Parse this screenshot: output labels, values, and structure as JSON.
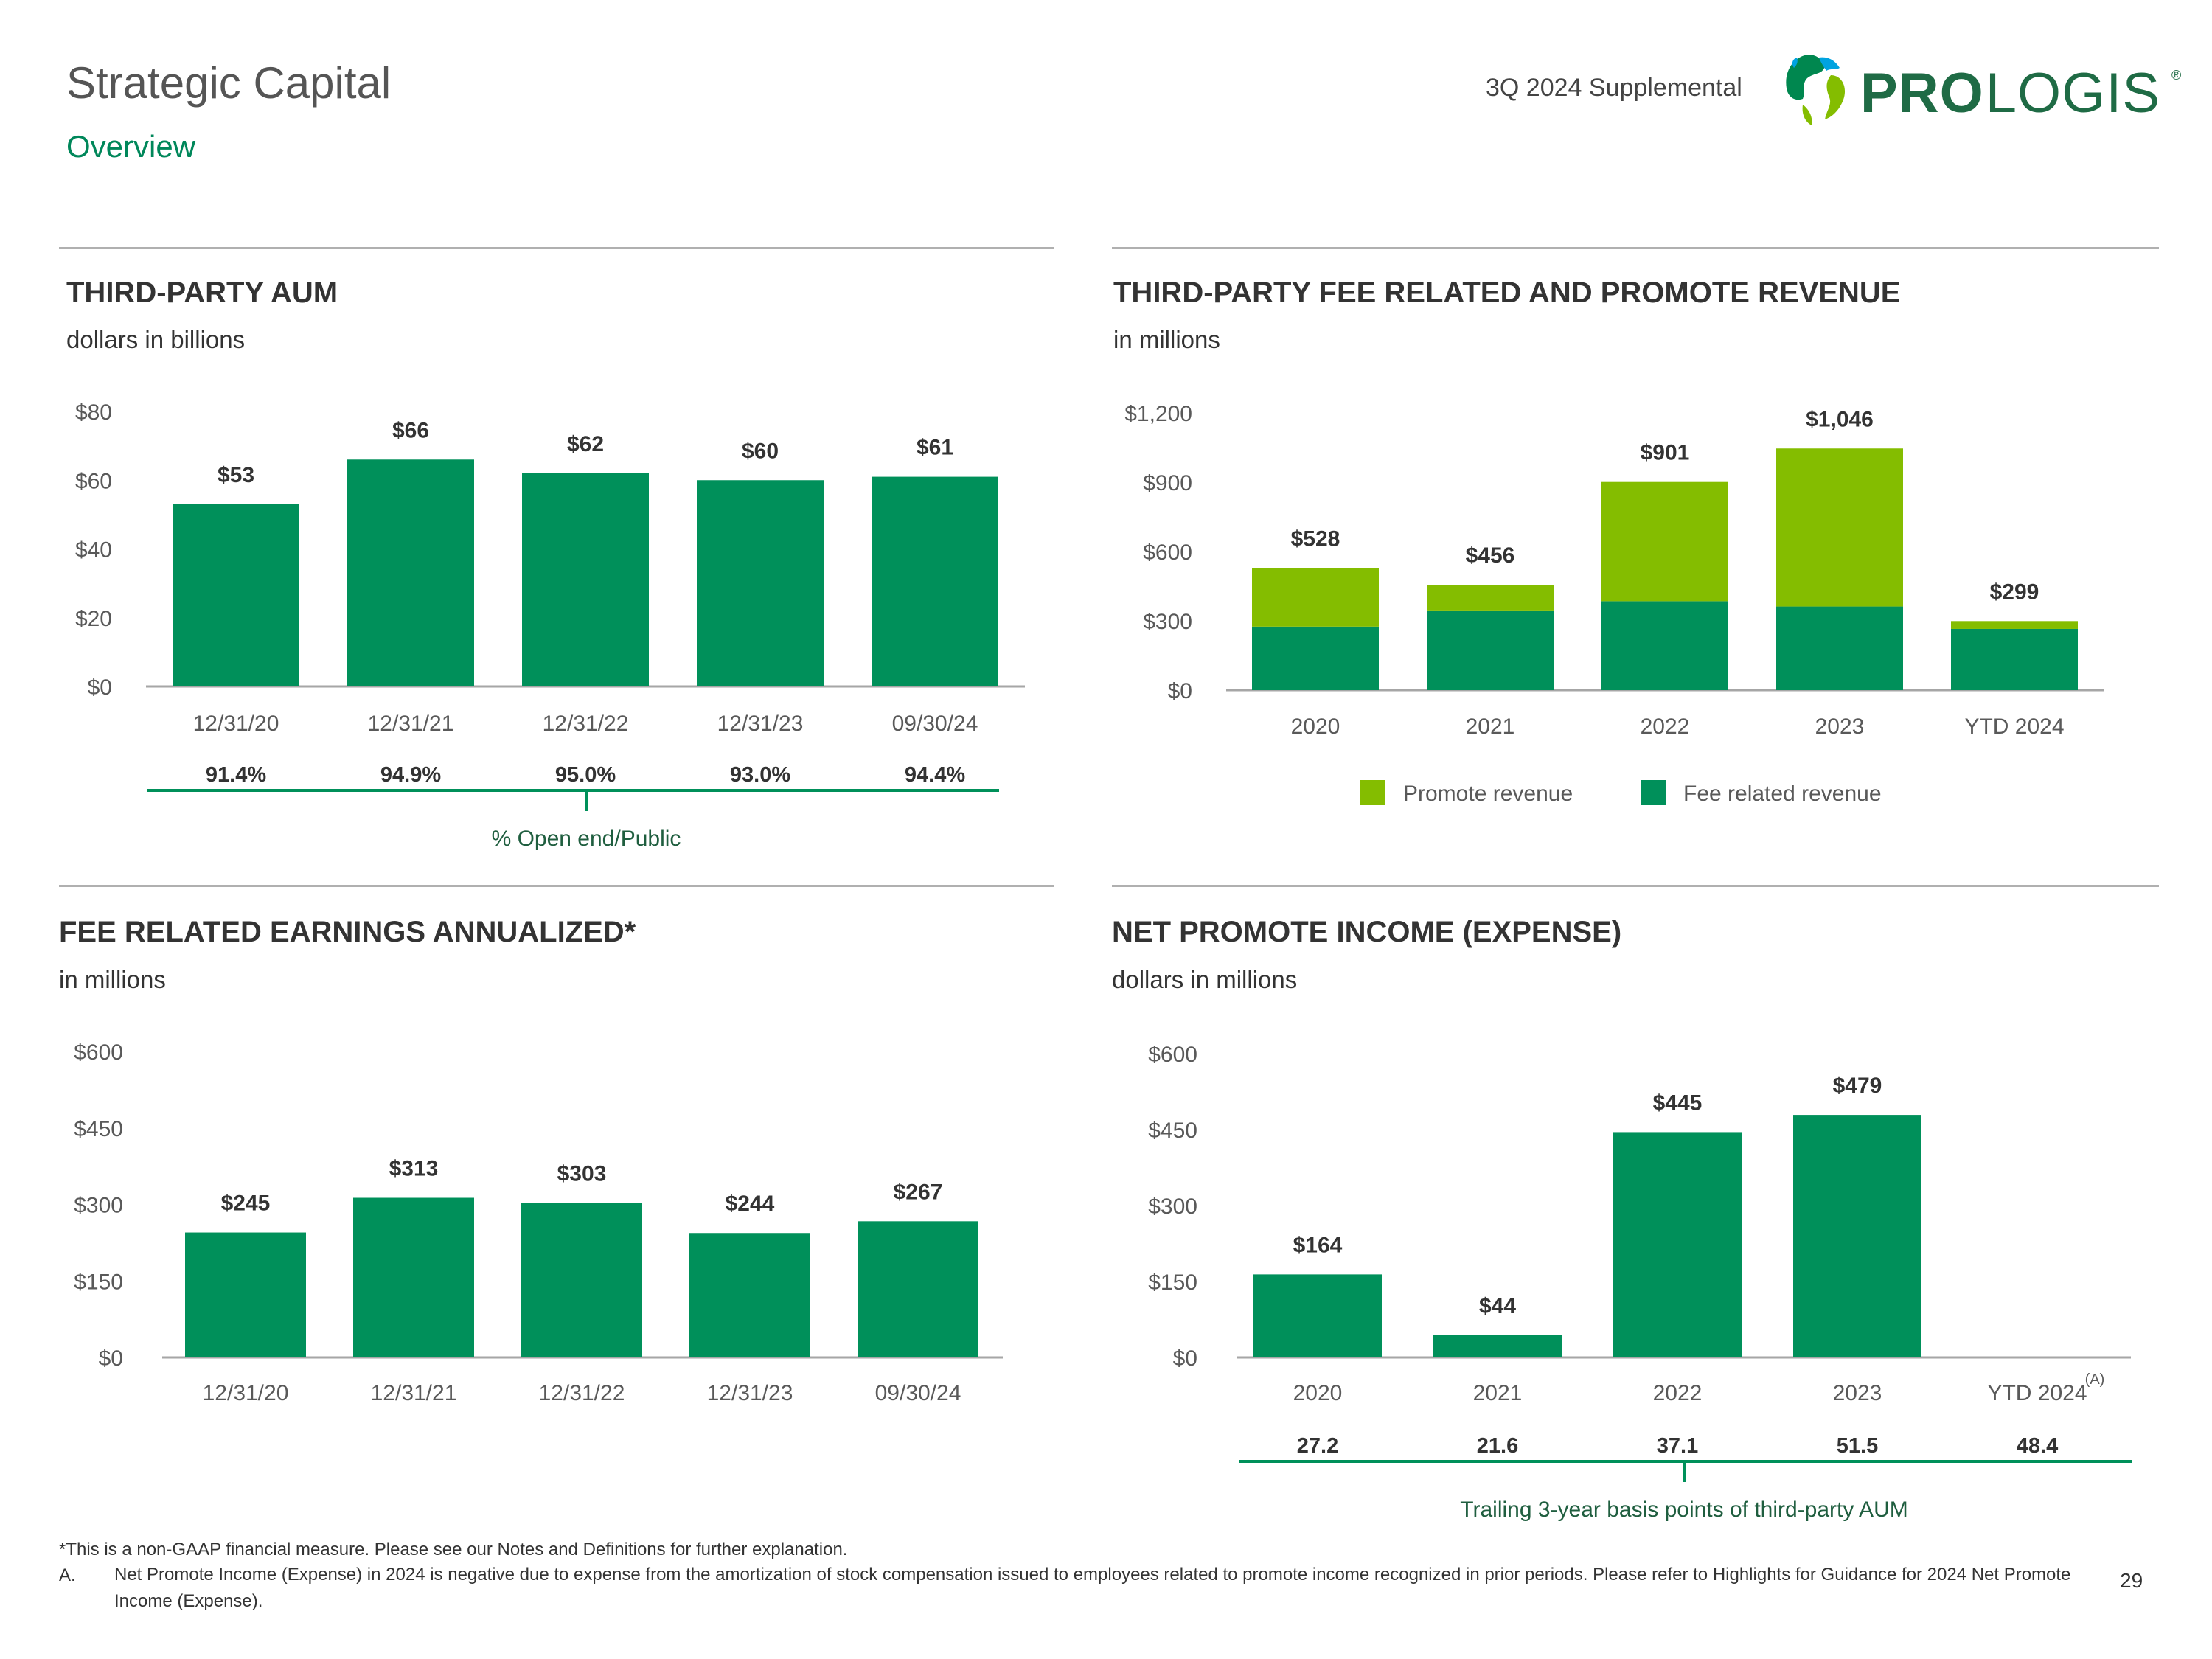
{
  "header": {
    "title": "Strategic Capital",
    "subtitle": "Overview",
    "supplemental": "3Q 2024 Supplemental",
    "logo_text": "PROLOGIS",
    "logo_mark": "®"
  },
  "colors": {
    "dark_green": "#00905a",
    "light_green": "#84bd00",
    "axis_gray": "#a6a6a6",
    "text_gray": "#595959"
  },
  "chart_data": [
    {
      "id": "aum",
      "type": "bar",
      "title": "THIRD-PARTY AUM",
      "subtitle": "dollars in billions",
      "categories": [
        "12/31/20",
        "12/31/21",
        "12/31/22",
        "12/31/23",
        "09/30/24"
      ],
      "values": [
        53,
        66,
        62,
        60,
        61
      ],
      "value_labels": [
        "$53",
        "$66",
        "$62",
        "$60",
        "$61"
      ],
      "y_ticks": [
        "$0",
        "$20",
        "$40",
        "$60",
        "$80"
      ],
      "ylim": [
        0,
        80
      ],
      "grid": false,
      "sub_labels": [
        "91.4%",
        "94.9%",
        "95.0%",
        "93.0%",
        "94.4%"
      ],
      "sub_caption": "% Open end/Public"
    },
    {
      "id": "fee_revenue",
      "type": "bar",
      "stacked": true,
      "title": "THIRD-PARTY FEE RELATED AND PROMOTE REVENUE",
      "subtitle": "in millions",
      "categories": [
        "2020",
        "2021",
        "2022",
        "2023",
        "YTD 2024"
      ],
      "series": [
        {
          "name": "Fee related revenue",
          "values": [
            275,
            345,
            385,
            362,
            265
          ],
          "color": "#00905a"
        },
        {
          "name": "Promote revenue",
          "values": [
            253,
            111,
            516,
            684,
            34
          ],
          "color": "#84bd00"
        }
      ],
      "value_labels": [
        "$528",
        "$456",
        "$901",
        "$1,046",
        "$299"
      ],
      "y_ticks": [
        "$0",
        "$300",
        "$600",
        "$900",
        "$1,200"
      ],
      "ylim": [
        0,
        1200
      ],
      "grid": false,
      "legend": [
        "Promote revenue",
        "Fee related revenue"
      ],
      "legend_position": "bottom"
    },
    {
      "id": "fre",
      "type": "bar",
      "title": "FEE RELATED EARNINGS ANNUALIZED*",
      "subtitle": "in millions",
      "categories": [
        "12/31/20",
        "12/31/21",
        "12/31/22",
        "12/31/23",
        "09/30/24"
      ],
      "values": [
        245,
        313,
        303,
        244,
        267
      ],
      "value_labels": [
        "$245",
        "$313",
        "$303",
        "$244",
        "$267"
      ],
      "y_ticks": [
        "$0",
        "$150",
        "$300",
        "$450",
        "$600"
      ],
      "ylim": [
        0,
        600
      ],
      "grid": false
    },
    {
      "id": "promote",
      "type": "bar",
      "title": "NET PROMOTE INCOME (EXPENSE)",
      "subtitle": "dollars in millions",
      "categories": [
        "2020",
        "2021",
        "2022",
        "2023",
        "YTD 2024"
      ],
      "values": [
        164,
        44,
        445,
        479,
        0
      ],
      "value_labels": [
        "$164",
        "$44",
        "$445",
        "$479",
        ""
      ],
      "category_note": "(A)",
      "y_ticks": [
        "$0",
        "$150",
        "$300",
        "$450",
        "$600"
      ],
      "ylim": [
        0,
        600
      ],
      "grid": false,
      "sub_labels": [
        "27.2",
        "21.6",
        "37.1",
        "51.5",
        "48.4"
      ],
      "sub_caption": "Trailing 3-year basis points of third-party AUM"
    }
  ],
  "footnotes": {
    "non_gaap": "*This is a non-GAAP financial measure. Please see our Notes and Definitions for further explanation.",
    "a_marker": "A.",
    "a_text": "Net Promote Income (Expense) in 2024 is negative due to expense from the amortization of stock compensation issued to employees related to promote income recognized in prior periods. Please refer to Highlights for Guidance for 2024 Net Promote Income (Expense)."
  },
  "page_number": "29"
}
